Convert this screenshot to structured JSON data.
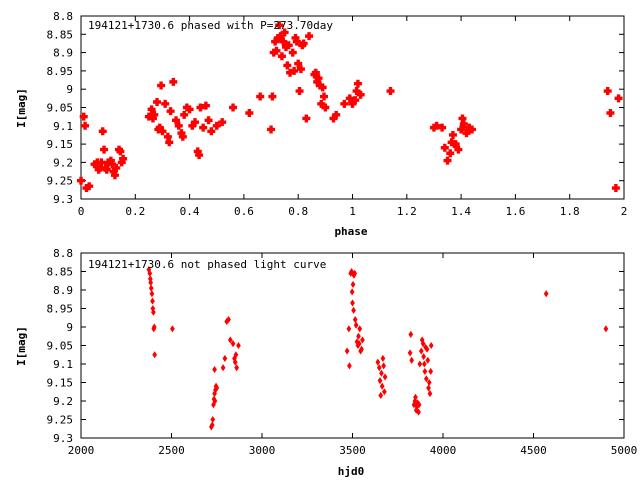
{
  "chart_data": [
    {
      "type": "scatter",
      "title": "194121+1730.6 phased with P=273.70day",
      "xlabel": "phase",
      "ylabel": "I[mag]",
      "xlim": [
        0,
        2
      ],
      "ylim": [
        9.3,
        8.8
      ],
      "y_inverted": true,
      "xticks": [
        "0",
        "0.2",
        "0.4",
        "0.6",
        "0.8",
        "1",
        "1.2",
        "1.4",
        "1.6",
        "1.8",
        "2"
      ],
      "yticks": [
        "8.8",
        "8.85",
        "8.9",
        "8.95",
        "9",
        "9.05",
        "9.1",
        "9.15",
        "9.2",
        "9.25",
        "9.3"
      ],
      "xtick_values": [
        0,
        0.2,
        0.4,
        0.6,
        0.8,
        1,
        1.2,
        1.4,
        1.6,
        1.8,
        2
      ],
      "ytick_values": [
        8.8,
        8.85,
        8.9,
        8.95,
        9,
        9.05,
        9.1,
        9.15,
        9.2,
        9.25,
        9.3
      ],
      "marker_color": "#ff0000",
      "grid": false,
      "series": [
        {
          "points": [
            [
              0.0,
              9.25
            ],
            [
              0.01,
              9.075
            ],
            [
              0.015,
              9.1
            ],
            [
              0.02,
              9.27
            ],
            [
              0.03,
              9.265
            ],
            [
              0.05,
              9.205
            ],
            [
              0.06,
              9.2
            ],
            [
              0.065,
              9.22
            ],
            [
              0.07,
              9.215
            ],
            [
              0.075,
              9.2
            ],
            [
              0.08,
              9.115
            ],
            [
              0.085,
              9.165
            ],
            [
              0.09,
              9.215
            ],
            [
              0.095,
              9.22
            ],
            [
              0.1,
              9.2
            ],
            [
              0.11,
              9.195
            ],
            [
              0.115,
              9.205
            ],
            [
              0.12,
              9.225
            ],
            [
              0.125,
              9.235
            ],
            [
              0.13,
              9.215
            ],
            [
              0.14,
              9.165
            ],
            [
              0.145,
              9.17
            ],
            [
              0.15,
              9.2
            ],
            [
              0.155,
              9.19
            ],
            [
              0.25,
              9.075
            ],
            [
              0.26,
              9.055
            ],
            [
              0.265,
              9.08
            ],
            [
              0.27,
              9.07
            ],
            [
              0.28,
              9.035
            ],
            [
              0.285,
              9.11
            ],
            [
              0.29,
              9.105
            ],
            [
              0.295,
              8.99
            ],
            [
              0.3,
              9.115
            ],
            [
              0.31,
              9.04
            ],
            [
              0.32,
              9.13
            ],
            [
              0.325,
              9.145
            ],
            [
              0.33,
              9.06
            ],
            [
              0.34,
              8.98
            ],
            [
              0.35,
              9.085
            ],
            [
              0.36,
              9.1
            ],
            [
              0.37,
              9.12
            ],
            [
              0.375,
              9.13
            ],
            [
              0.38,
              9.07
            ],
            [
              0.39,
              9.05
            ],
            [
              0.4,
              9.055
            ],
            [
              0.41,
              9.1
            ],
            [
              0.42,
              9.09
            ],
            [
              0.43,
              9.17
            ],
            [
              0.435,
              9.18
            ],
            [
              0.44,
              9.05
            ],
            [
              0.45,
              9.105
            ],
            [
              0.46,
              9.045
            ],
            [
              0.47,
              9.085
            ],
            [
              0.48,
              9.115
            ],
            [
              0.5,
              9.1
            ],
            [
              0.52,
              9.09
            ],
            [
              0.56,
              9.05
            ],
            [
              0.62,
              9.065
            ],
            [
              0.66,
              9.02
            ],
            [
              0.7,
              9.11
            ],
            [
              0.705,
              9.02
            ],
            [
              0.71,
              8.9
            ],
            [
              0.715,
              8.87
            ],
            [
              0.72,
              8.895
            ],
            [
              0.725,
              8.86
            ],
            [
              0.73,
              8.825
            ],
            [
              0.735,
              8.855
            ],
            [
              0.74,
              8.91
            ],
            [
              0.745,
              8.87
            ],
            [
              0.75,
              8.845
            ],
            [
              0.755,
              8.885
            ],
            [
              0.76,
              8.935
            ],
            [
              0.765,
              8.88
            ],
            [
              0.77,
              8.955
            ],
            [
              0.78,
              8.9
            ],
            [
              0.785,
              8.95
            ],
            [
              0.79,
              8.86
            ],
            [
              0.795,
              8.87
            ],
            [
              0.8,
              8.93
            ],
            [
              0.805,
              9.005
            ],
            [
              0.81,
              8.945
            ],
            [
              0.815,
              8.88
            ],
            [
              0.82,
              8.875
            ],
            [
              0.83,
              9.08
            ],
            [
              0.84,
              8.855
            ],
            [
              0.86,
              8.96
            ],
            [
              0.865,
              8.955
            ],
            [
              0.87,
              8.98
            ],
            [
              0.875,
              8.97
            ],
            [
              0.88,
              8.99
            ],
            [
              0.885,
              9.04
            ],
            [
              0.89,
              8.995
            ],
            [
              0.895,
              9.02
            ],
            [
              0.9,
              9.05
            ],
            [
              0.93,
              9.08
            ],
            [
              0.94,
              9.07
            ],
            [
              0.97,
              9.04
            ],
            [
              0.99,
              9.025
            ],
            [
              1.0,
              9.04
            ],
            [
              1.01,
              9.03
            ],
            [
              1.015,
              9.005
            ],
            [
              1.02,
              8.985
            ],
            [
              1.03,
              9.015
            ],
            [
              1.14,
              9.005
            ],
            [
              1.3,
              9.105
            ],
            [
              1.31,
              9.1
            ],
            [
              1.33,
              9.105
            ],
            [
              1.34,
              9.16
            ],
            [
              1.35,
              9.195
            ],
            [
              1.36,
              9.175
            ],
            [
              1.365,
              9.145
            ],
            [
              1.37,
              9.125
            ],
            [
              1.375,
              9.15
            ],
            [
              1.38,
              9.15
            ],
            [
              1.39,
              9.165
            ],
            [
              1.4,
              9.11
            ],
            [
              1.405,
              9.08
            ],
            [
              1.41,
              9.095
            ],
            [
              1.42,
              9.12
            ],
            [
              1.43,
              9.105
            ],
            [
              1.44,
              9.11
            ],
            [
              1.94,
              9.005
            ],
            [
              1.95,
              9.065
            ],
            [
              1.97,
              9.27
            ],
            [
              1.98,
              9.025
            ]
          ]
        }
      ]
    },
    {
      "type": "scatter",
      "title": "194121+1730.6 not phased light curve",
      "xlabel": "hjd0",
      "ylabel": "I[mag]",
      "xlim": [
        2000,
        5000
      ],
      "ylim": [
        9.3,
        8.8
      ],
      "y_inverted": true,
      "xticks": [
        "2000",
        "2500",
        "3000",
        "3500",
        "4000",
        "4500",
        "5000"
      ],
      "yticks": [
        "8.8",
        "8.85",
        "8.9",
        "8.95",
        "9",
        "9.05",
        "9.1",
        "9.15",
        "9.2",
        "9.25",
        "9.3"
      ],
      "xtick_values": [
        2000,
        2500,
        3000,
        3500,
        4000,
        4500,
        5000
      ],
      "ytick_values": [
        8.8,
        8.85,
        8.9,
        8.95,
        9,
        9.05,
        9.1,
        9.15,
        9.2,
        9.25,
        9.3
      ],
      "marker_color": "#ff0000",
      "grid": false,
      "series": [
        {
          "points": [
            [
              2375,
              8.845
            ],
            [
              2380,
              8.855
            ],
            [
              2383,
              8.87
            ],
            [
              2385,
              8.88
            ],
            [
              2388,
              8.895
            ],
            [
              2392,
              8.91
            ],
            [
              2395,
              8.93
            ],
            [
              2397,
              8.95
            ],
            [
              2400,
              8.96
            ],
            [
              2402,
              9.005
            ],
            [
              2405,
              9.0
            ],
            [
              2407,
              9.075
            ],
            [
              2505,
              9.005
            ],
            [
              2720,
              9.27
            ],
            [
              2725,
              9.265
            ],
            [
              2728,
              9.25
            ],
            [
              2732,
              9.21
            ],
            [
              2735,
              9.195
            ],
            [
              2738,
              9.18
            ],
            [
              2740,
              9.2
            ],
            [
              2743,
              9.17
            ],
            [
              2746,
              9.16
            ],
            [
              2750,
              9.165
            ],
            [
              2738,
              9.115
            ],
            [
              2785,
              9.11
            ],
            [
              2795,
              9.085
            ],
            [
              2805,
              8.985
            ],
            [
              2815,
              8.98
            ],
            [
              2825,
              9.035
            ],
            [
              2840,
              9.045
            ],
            [
              2848,
              9.085
            ],
            [
              2852,
              9.095
            ],
            [
              2856,
              9.075
            ],
            [
              2860,
              9.11
            ],
            [
              2870,
              9.05
            ],
            [
              3470,
              9.065
            ],
            [
              3480,
              9.005
            ],
            [
              3483,
              9.105
            ],
            [
              3490,
              8.855
            ],
            [
              3495,
              8.85
            ],
            [
              3498,
              8.905
            ],
            [
              3500,
              8.935
            ],
            [
              3503,
              8.885
            ],
            [
              3506,
              8.955
            ],
            [
              3508,
              8.86
            ],
            [
              3512,
              8.855
            ],
            [
              3515,
              8.98
            ],
            [
              3520,
              8.995
            ],
            [
              3525,
              9.04
            ],
            [
              3530,
              9.05
            ],
            [
              3533,
              9.025
            ],
            [
              3537,
              9.045
            ],
            [
              3540,
              9.005
            ],
            [
              3545,
              9.065
            ],
            [
              3550,
              9.06
            ],
            [
              3555,
              9.035
            ],
            [
              3640,
              9.095
            ],
            [
              3648,
              9.11
            ],
            [
              3652,
              9.145
            ],
            [
              3656,
              9.185
            ],
            [
              3660,
              9.125
            ],
            [
              3664,
              9.16
            ],
            [
              3668,
              9.085
            ],
            [
              3672,
              9.105
            ],
            [
              3676,
              9.175
            ],
            [
              3680,
              9.135
            ],
            [
              3818,
              9.07
            ],
            [
              3822,
              9.02
            ],
            [
              3827,
              9.09
            ],
            [
              3840,
              9.21
            ],
            [
              3845,
              9.2
            ],
            [
              3848,
              9.19
            ],
            [
              3852,
              9.225
            ],
            [
              3856,
              9.215
            ],
            [
              3860,
              9.205
            ],
            [
              3865,
              9.23
            ],
            [
              3868,
              9.21
            ],
            [
              3872,
              9.1
            ],
            [
              3880,
              9.065
            ],
            [
              3885,
              9.035
            ],
            [
              3890,
              9.045
            ],
            [
              3893,
              9.08
            ],
            [
              3897,
              9.1
            ],
            [
              3900,
              9.12
            ],
            [
              3904,
              9.055
            ],
            [
              3908,
              9.14
            ],
            [
              3912,
              9.06
            ],
            [
              3916,
              9.09
            ],
            [
              3920,
              9.165
            ],
            [
              3924,
              9.15
            ],
            [
              3928,
              9.18
            ],
            [
              3932,
              9.12
            ],
            [
              3935,
              9.05
            ],
            [
              4570,
              8.91
            ],
            [
              4900,
              9.005
            ]
          ]
        }
      ]
    }
  ]
}
